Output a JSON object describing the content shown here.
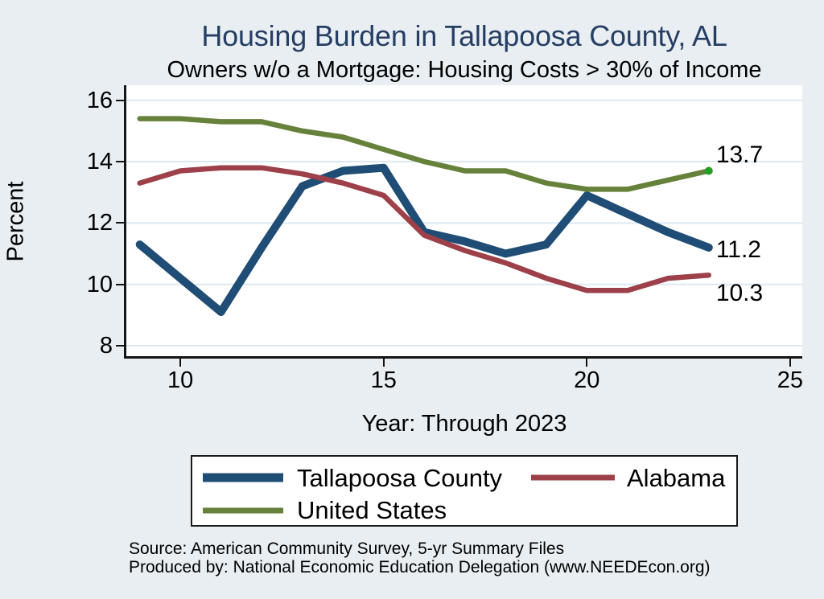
{
  "page": {
    "background": "#e8eef2"
  },
  "header": {
    "title_color": "#263e63"
  },
  "chart_data": {
    "type": "line",
    "title": "Housing Burden in Tallapoosa County, AL",
    "subtitle": "Owners w/o a Mortgage: Housing Costs > 30% of Income",
    "xlabel": "Year: Through 2023",
    "ylabel": "Percent",
    "x": [
      2009,
      2010,
      2011,
      2012,
      2013,
      2014,
      2015,
      2016,
      2017,
      2018,
      2019,
      2020,
      2021,
      2022,
      2023
    ],
    "series": [
      {
        "name": "Tallapoosa County",
        "color": "#204d75",
        "stroke_width": 10,
        "values": [
          11.3,
          10.2,
          9.1,
          11.2,
          13.2,
          13.7,
          13.8,
          11.7,
          11.4,
          11.0,
          11.3,
          12.9,
          12.3,
          11.7,
          11.2
        ],
        "end_label": "11.2"
      },
      {
        "name": "Alabama",
        "color": "#9d4049",
        "stroke_width": 6.5,
        "values": [
          13.3,
          13.7,
          13.8,
          13.8,
          13.6,
          13.3,
          12.9,
          11.6,
          11.1,
          10.7,
          10.2,
          9.8,
          9.8,
          10.2,
          10.3
        ],
        "end_label": "10.3"
      },
      {
        "name": "United States",
        "color": "#66813a",
        "stroke_width": 6.5,
        "values": [
          15.4,
          15.4,
          15.3,
          15.3,
          15.0,
          14.8,
          14.4,
          14.0,
          13.7,
          13.7,
          13.3,
          13.1,
          13.1,
          13.4,
          13.7
        ],
        "end_label": "13.7",
        "end_marker_color": "#22a022"
      }
    ],
    "xlim": [
      2008.67,
      2025.3
    ],
    "ylim": [
      7.66,
      16.49
    ],
    "xticks": [
      {
        "value": 2010,
        "label": "10"
      },
      {
        "value": 2015,
        "label": "15"
      },
      {
        "value": 2020,
        "label": "20"
      },
      {
        "value": 2025,
        "label": "25"
      }
    ],
    "yticks": [
      {
        "value": 8,
        "label": "8"
      },
      {
        "value": 10,
        "label": "10"
      },
      {
        "value": 12,
        "label": "12"
      },
      {
        "value": 14,
        "label": "14"
      },
      {
        "value": 16,
        "label": "16"
      }
    ],
    "grid": "horizontal",
    "gridline_color": "#dce9f3",
    "legend_position": "bottom"
  },
  "legend": {
    "items": [
      {
        "label": "Tallapoosa County",
        "color": "#204d75",
        "thickness": 11
      },
      {
        "label": "Alabama",
        "color": "#9d4049",
        "thickness": 7
      },
      {
        "label": "United States",
        "color": "#66813a",
        "thickness": 7
      }
    ]
  },
  "footer": {
    "source": "Source: American Community Survey, 5-yr Summary Files",
    "produced_by": "Produced by: National Economic Education Delegation (www.NEEDEcon.org)"
  }
}
